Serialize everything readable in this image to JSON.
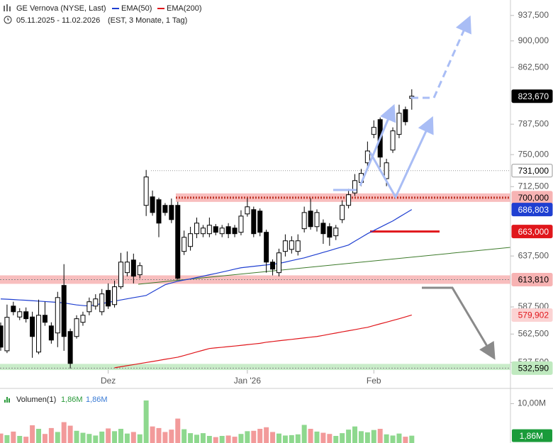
{
  "chart_data": [
    {
      "type": "candlestick",
      "title": "GE Vernova (NYSE, Last)",
      "date_range": "05.11.2025 - 11.02.2026",
      "note": "(EST, 3 Monate, 1 Tag)",
      "categories": [
        null,
        null,
        null,
        null,
        null,
        null,
        null,
        null,
        null,
        null,
        null,
        null,
        null,
        null,
        null,
        null,
        null,
        "Dez",
        null,
        null,
        null,
        null,
        null,
        null,
        null,
        null,
        null,
        null,
        null,
        null,
        null,
        null,
        null,
        null,
        null,
        null,
        null,
        null,
        null,
        "Jan '26",
        null,
        null,
        null,
        null,
        null,
        null,
        null,
        null,
        null,
        null,
        null,
        null,
        null,
        null,
        null,
        null,
        null,
        null,
        null,
        "Feb",
        null,
        null,
        null,
        null,
        null,
        null
      ],
      "open": [
        569.9,
        547.6,
        588.3,
        578.1,
        583.0,
        578.1,
        546.5,
        579.7,
        569.9,
        563.5,
        608.1,
        564.8,
        560.3,
        573.2,
        583.0,
        588.3,
        583.0,
        603.3,
        589.7,
        606.8,
        620.7,
        633.4,
        618.6,
        691.4,
        700.9,
        697.7,
        691.4,
        691.4,
        691.4,
        642.2,
        647.3,
        660.7,
        660.7,
        660.7,
        668.2,
        660.7,
        668.2,
        666.7,
        662.2,
        682.0,
        686.7,
        685.1,
        662.2,
        631.3,
        620.7,
        642.2,
        644.3,
        642.2,
        666.0,
        685.1,
        668.2,
        671.9,
        668.2,
        658.5,
        675.8,
        691.4,
        705.3,
        717.3,
        740.2,
        774.7,
        793.3,
        721.7,
        755.5,
        774.7,
        806.1,
        820.8
      ],
      "high": [
        573.0,
        589.7,
        592.4,
        586.3,
        587.0,
        583.0,
        594.4,
        592.4,
        573.2,
        601.9,
        629.2,
        567.4,
        579.7,
        583.0,
        596.4,
        599.6,
        604.6,
        610.1,
        612.8,
        640.7,
        642.2,
        639.9,
        631.0,
        731.8,
        708.0,
        700.0,
        694.0,
        699.0,
        695.4,
        664.0,
        668.0,
        678.0,
        670.0,
        678.0,
        671.0,
        670.0,
        672.0,
        670.0,
        686.0,
        699.3,
        690.0,
        688.0,
        665.0,
        634.0,
        645.0,
        660.0,
        658.0,
        660.0,
        690.0,
        699.3,
        687.0,
        676.0,
        672.0,
        670.0,
        697.0,
        710.0,
        727.0,
        733.0,
        765.9,
        792.4,
        796.0,
        745.0,
        783.5,
        812.5,
        810.0,
        832.8
      ],
      "low": [
        547.6,
        545.6,
        579.7,
        575.2,
        573.0,
        541.5,
        544.6,
        570.0,
        553.9,
        550.8,
        547.6,
        532.3,
        558.4,
        570.0,
        579.7,
        585.0,
        579.7,
        585.6,
        586.9,
        604.6,
        617.0,
        610.1,
        615.0,
        679.7,
        680.0,
        657.0,
        680.0,
        672.0,
        613.8,
        638.5,
        643.0,
        656.0,
        657.0,
        657.0,
        659.0,
        657.0,
        656.0,
        657.0,
        659.0,
        679.0,
        657.0,
        658.0,
        620.7,
        618.0,
        617.0,
        637.0,
        640.0,
        638.0,
        662.0,
        665.0,
        663.0,
        650.0,
        648.0,
        654.0,
        672.0,
        688.0,
        702.0,
        713.0,
        731.8,
        770.0,
        735.0,
        713.0,
        752.0,
        770.0,
        786.0,
        806.0
      ],
      "close": [
        550.8,
        577.8,
        583.0,
        583.0,
        576.5,
        560.3,
        579.7,
        573.2,
        557.1,
        596.4,
        560.3,
        536.6,
        576.5,
        579.7,
        592.4,
        595.1,
        599.9,
        588.3,
        606.8,
        631.3,
        631.3,
        617.2,
        627.7,
        723.6,
        683.5,
        672.0,
        683.5,
        675.8,
        615.1,
        656.9,
        660.7,
        672.0,
        666.7,
        669.7,
        662.2,
        666.7,
        660.7,
        660.7,
        679.6,
        689.8,
        660.7,
        662.2,
        631.3,
        624.2,
        640.7,
        653.2,
        653.2,
        653.2,
        683.5,
        668.2,
        683.5,
        660.7,
        657.0,
        666.7,
        691.4,
        703.3,
        719.4,
        727.7,
        754.4,
        783.5,
        747.0,
        740.2,
        779.1,
        801.5,
        790.6,
        823.67
      ],
      "up_color": "#ffffff",
      "down_color": "#000000",
      "series": [
        {
          "name": "EMA(50)",
          "color": "#1f3fd1",
          "values": [
            595.1,
            594.8,
            594.5,
            594.1,
            593.8,
            593.4,
            593.0,
            592.6,
            592.2,
            591.8,
            591.3,
            590.3,
            589.4,
            588.8,
            588.3,
            589.5,
            590.7,
            591.8,
            593.0,
            594.1,
            595.2,
            596.3,
            597.3,
            598.4,
            601.9,
            605.3,
            608.8,
            610.5,
            612.2,
            613.4,
            614.5,
            615.9,
            617.2,
            618.6,
            619.9,
            621.3,
            622.7,
            624.2,
            625.6,
            626.3,
            627.0,
            627.7,
            628.4,
            629.2,
            629.9,
            631.3,
            632.8,
            634.2,
            635.6,
            637.5,
            639.3,
            641.2,
            643.0,
            645.0,
            646.9,
            648.8,
            652.8,
            656.7,
            660.7,
            664.1,
            667.5,
            670.9,
            674.3,
            678.5,
            682.6,
            686.8
          ]
        },
        {
          "name": "EMA(200)",
          "color": "#e0161b",
          "values": [
            null,
            null,
            null,
            null,
            null,
            null,
            null,
            null,
            null,
            null,
            null,
            null,
            null,
            null,
            null,
            null,
            null,
            null,
            532.9,
            533.8,
            534.7,
            535.6,
            536.5,
            537.4,
            538.3,
            539.2,
            540.2,
            541.1,
            542.0,
            543.5,
            545.0,
            546.6,
            548.1,
            549.6,
            550.2,
            550.7,
            551.3,
            551.8,
            552.4,
            553.0,
            553.6,
            554.2,
            555.2,
            555.8,
            556.5,
            557.1,
            557.7,
            558.4,
            559.0,
            559.7,
            560.3,
            561.3,
            562.4,
            563.4,
            564.5,
            565.5,
            566.5,
            567.6,
            568.6,
            570.2,
            571.8,
            573.3,
            574.9,
            576.5,
            578.2,
            579.9
          ]
        }
      ],
      "log_scale": true,
      "grid": false,
      "ylim": [
        531,
        961
      ],
      "yticks": [
        {
          "value": 937.5,
          "label": "937,500"
        },
        {
          "value": 900,
          "label": "900,000"
        },
        {
          "value": 862.5,
          "label": "862,500"
        },
        {
          "value": 787.5,
          "label": "787,500"
        },
        {
          "value": 750,
          "label": "750,000"
        },
        {
          "value": 712.5,
          "label": "712,500"
        },
        {
          "value": 637.5,
          "label": "637,500"
        },
        {
          "value": 587.5,
          "label": "587,500"
        },
        {
          "value": 562.5,
          "label": "562,500"
        },
        {
          "value": 537.5,
          "label": "537,500"
        }
      ],
      "levels": [
        {
          "value": 823.67,
          "label": "823,670",
          "kind": "none",
          "color": "#000000",
          "text_color": "#ffffff"
        },
        {
          "value": 731,
          "label": "731,000",
          "kind": "dotted",
          "color": "#ffffff",
          "text_color": "#000000"
        },
        {
          "value": 700,
          "label": "700,000",
          "kind": "band",
          "color": "#f7b3b3",
          "text_color": "#000000"
        },
        {
          "value": 686.803,
          "label": "686,803",
          "kind": "none",
          "color": "#1f3fd1",
          "text_color": "#ffffff"
        },
        {
          "value": 663,
          "label": "663,000",
          "kind": "line",
          "color": "#e0161b",
          "text_color": "#ffffff"
        },
        {
          "value": 613.81,
          "label": "613,810",
          "kind": "band",
          "color": "#f7b3b3",
          "text_color": "#000000"
        },
        {
          "value": 579.902,
          "label": "579,902",
          "kind": "none",
          "color": "#fbd3d3",
          "text_color": "#e0161b"
        },
        {
          "value": 532.59,
          "label": "532,590",
          "kind": "band",
          "color": "#bfe9bf",
          "text_color": "#000000"
        }
      ]
    },
    {
      "type": "bar",
      "title": "Volumen(1)",
      "legend_values": [
        "1,86M",
        "1,86M"
      ],
      "values": [
        2.4,
        2.0,
        2.9,
        1.8,
        1.6,
        4.5,
        3.6,
        2.3,
        3.8,
        2.8,
        5.3,
        4.4,
        3.1,
        2.6,
        2.3,
        1.9,
        2.9,
        3.7,
        3.0,
        3.6,
        2.4,
        2.8,
        2.2,
        10.8,
        4.2,
        3.8,
        2.8,
        3.4,
        6.2,
        3.5,
        2.5,
        2.1,
        2.5,
        1.8,
        1.5,
        1.8,
        1.9,
        1.6,
        2.3,
        3.0,
        3.1,
        3.6,
        4.0,
        2.8,
        2.4,
        1.9,
        2.0,
        2.2,
        4.6,
        3.6,
        2.9,
        2.6,
        2.3,
        1.8,
        2.5,
        3.4,
        4.2,
        3.0,
        2.7,
        3.3,
        3.6,
        2.2,
        1.9,
        2.4,
        1.6,
        1.86
      ],
      "up_color": "#8ed88e",
      "down_color": "#f29a9a",
      "ylim": [
        0,
        13.5
      ],
      "yticks": [
        {
          "value": 10,
          "label": "10,00M"
        }
      ],
      "last_label": "1,86M",
      "last_color": "#1a9b3a"
    }
  ]
}
